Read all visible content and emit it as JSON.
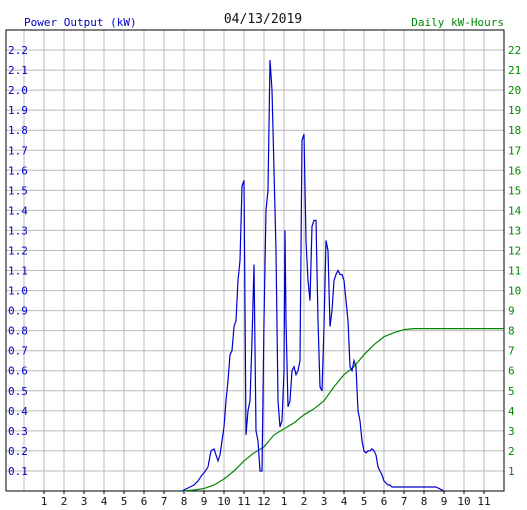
{
  "chart_data": {
    "type": "line",
    "title": "04/13/2019",
    "left_axis_label": "Power Output (kW)",
    "right_axis_label": "Daily kW-Hours",
    "x_tick_labels": [
      "1",
      "2",
      "3",
      "4",
      "5",
      "6",
      "7",
      "8",
      "9",
      "10",
      "11",
      "12",
      "1",
      "2",
      "3",
      "4",
      "5",
      "6",
      "7",
      "8",
      "9",
      "10",
      "11"
    ],
    "y_left_range": [
      0,
      2.3
    ],
    "y_left_ticks": [
      "0.1",
      "0.2",
      "0.3",
      "0.4",
      "0.5",
      "0.6",
      "0.7",
      "0.8",
      "0.9",
      "1.0",
      "1.1",
      "1.2",
      "1.3",
      "1.4",
      "1.5",
      "1.6",
      "1.7",
      "1.8",
      "1.9",
      "2.0",
      "2.1",
      "2.2"
    ],
    "y_right_range": [
      0,
      23
    ],
    "y_right_ticks": [
      "1",
      "2",
      "3",
      "4",
      "5",
      "6",
      "7",
      "8",
      "9",
      "10",
      "11",
      "12",
      "13",
      "14",
      "15",
      "16",
      "17",
      "18",
      "19",
      "20",
      "21",
      "22"
    ],
    "x_range_hours": [
      0,
      24
    ],
    "grid": true,
    "colors": {
      "power": "#0000cc",
      "energy": "#008800",
      "grid": "#bbbbbb",
      "axes": "#000000"
    },
    "series": [
      {
        "axis": "left",
        "x": [
          7.9,
          8.1,
          8.3,
          8.5,
          8.7,
          8.9,
          9.0,
          9.2,
          9.35,
          9.5,
          9.6,
          9.7,
          9.8,
          9.9,
          10.0,
          10.1,
          10.2,
          10.3,
          10.4,
          10.5,
          10.6,
          10.7,
          10.8,
          10.9,
          11.0,
          11.1,
          11.2,
          11.3,
          11.4,
          11.5,
          11.6,
          11.7,
          11.8,
          11.9,
          12.0,
          12.1,
          12.2,
          12.3,
          12.4,
          12.5,
          12.6,
          12.7,
          12.8,
          12.9,
          13.0,
          13.05,
          13.1,
          13.2,
          13.3,
          13.4,
          13.5,
          13.6,
          13.7,
          13.8,
          13.9,
          14.0,
          14.1,
          14.2,
          14.3,
          14.4,
          14.5,
          14.6,
          14.7,
          14.8,
          14.9,
          15.0,
          15.1,
          15.2,
          15.3,
          15.4,
          15.5,
          15.6,
          15.7,
          15.8,
          15.9,
          16.0,
          16.1,
          16.2,
          16.3,
          16.4,
          16.5,
          16.6,
          16.7,
          16.8,
          16.9,
          17.0,
          17.1,
          17.2,
          17.3,
          17.4,
          17.5,
          17.6,
          17.7,
          17.8,
          17.9,
          18.0,
          18.1,
          18.2,
          18.3,
          18.4,
          18.5,
          18.6,
          18.7,
          18.8,
          18.9,
          19.0,
          19.2,
          19.4,
          19.6,
          19.8,
          20.0,
          20.2,
          20.4,
          20.6,
          21.0
        ],
        "y": [
          0.0,
          0.01,
          0.02,
          0.03,
          0.05,
          0.08,
          0.09,
          0.12,
          0.2,
          0.21,
          0.18,
          0.15,
          0.18,
          0.25,
          0.32,
          0.45,
          0.55,
          0.68,
          0.7,
          0.82,
          0.85,
          1.05,
          1.15,
          1.52,
          1.55,
          0.28,
          0.4,
          0.45,
          0.75,
          1.13,
          0.3,
          0.25,
          0.1,
          0.1,
          0.85,
          1.4,
          1.5,
          2.15,
          2.0,
          1.6,
          1.2,
          0.45,
          0.32,
          0.35,
          0.6,
          1.3,
          0.85,
          0.42,
          0.45,
          0.6,
          0.62,
          0.58,
          0.6,
          0.65,
          1.75,
          1.78,
          1.25,
          1.05,
          0.95,
          1.32,
          1.35,
          1.35,
          0.85,
          0.52,
          0.5,
          0.82,
          1.25,
          1.2,
          0.82,
          0.9,
          1.05,
          1.08,
          1.1,
          1.08,
          1.08,
          1.05,
          0.95,
          0.85,
          0.62,
          0.6,
          0.65,
          0.62,
          0.4,
          0.35,
          0.25,
          0.2,
          0.19,
          0.2,
          0.2,
          0.21,
          0.2,
          0.18,
          0.12,
          0.1,
          0.08,
          0.05,
          0.04,
          0.03,
          0.03,
          0.02,
          0.02,
          0.02,
          0.02,
          0.02,
          0.02,
          0.02,
          0.02,
          0.02,
          0.02,
          0.02,
          0.02,
          0.02,
          0.02,
          0.02,
          0.0
        ]
      },
      {
        "axis": "right",
        "x": [
          7.9,
          8.5,
          9.0,
          9.5,
          10.0,
          10.5,
          11.0,
          11.5,
          12.0,
          12.5,
          13.0,
          13.5,
          14.0,
          14.5,
          15.0,
          15.5,
          16.0,
          16.5,
          17.0,
          17.5,
          18.0,
          18.5,
          19.0,
          19.5,
          20.0,
          21.0,
          22.0,
          23.0,
          24.0
        ],
        "y": [
          0.0,
          0.05,
          0.12,
          0.3,
          0.6,
          1.0,
          1.5,
          1.9,
          2.2,
          2.8,
          3.1,
          3.4,
          3.8,
          4.1,
          4.5,
          5.2,
          5.8,
          6.2,
          6.8,
          7.3,
          7.7,
          7.9,
          8.05,
          8.1,
          8.1,
          8.1,
          8.1,
          8.1,
          8.1
        ]
      }
    ]
  }
}
